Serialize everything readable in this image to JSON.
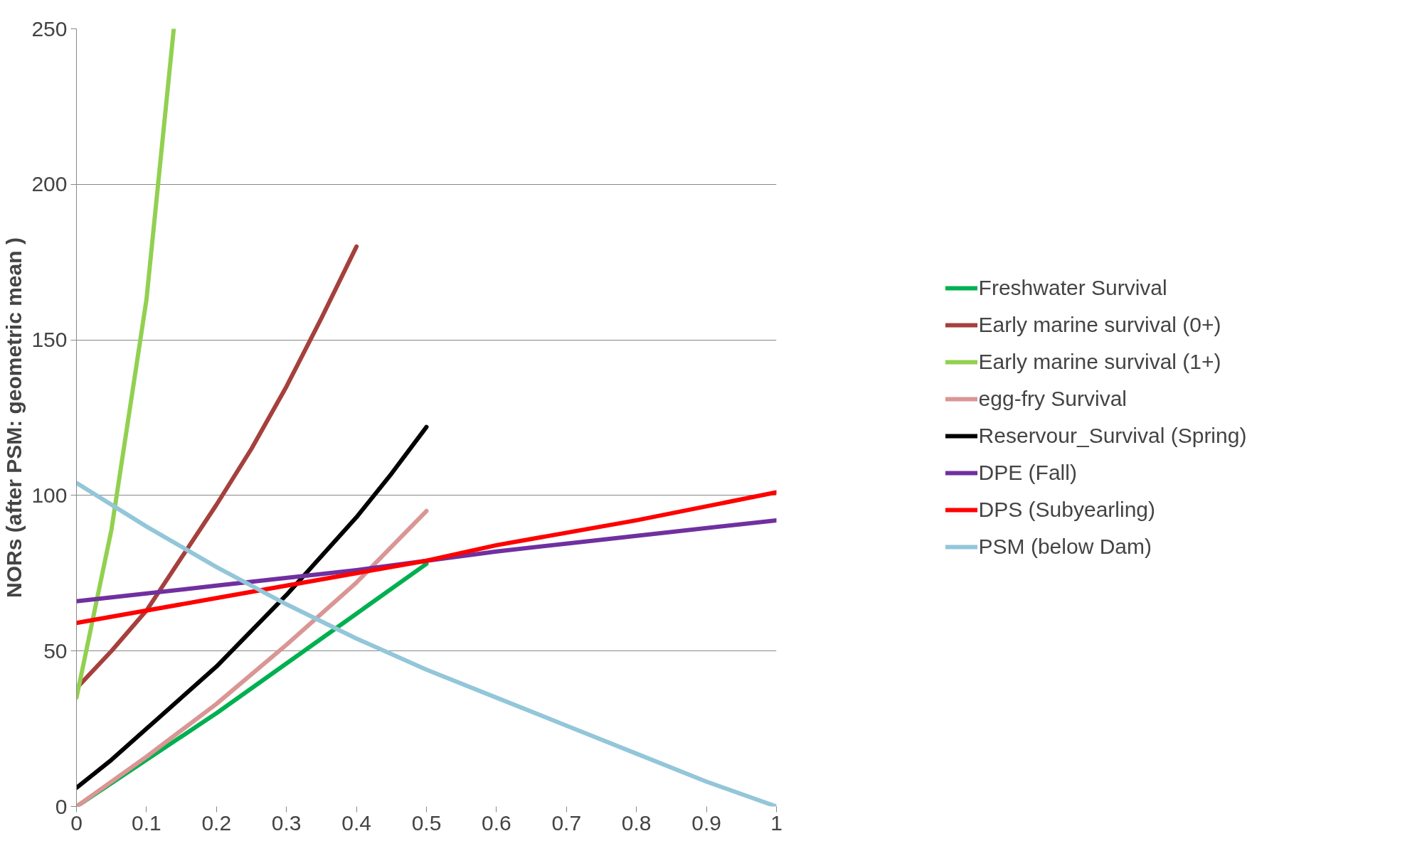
{
  "chart_data": {
    "type": "line",
    "ylabel": "NORs (after PSM: geometric mean )",
    "xlim": [
      0,
      1
    ],
    "ylim": [
      0,
      250
    ],
    "xticks": [
      0,
      0.1,
      0.2,
      0.3,
      0.4,
      0.5,
      0.6,
      0.7,
      0.8,
      0.9,
      1
    ],
    "yticks": [
      0,
      50,
      100,
      150,
      200,
      250
    ],
    "grid": "y",
    "legend": "right",
    "marker": "none",
    "line_style": "solid",
    "series": [
      {
        "name": "Freshwater Survival",
        "color": "#00b050",
        "x": [
          0,
          0.1,
          0.2,
          0.3,
          0.4,
          0.5
        ],
        "values": [
          0,
          15,
          30,
          46,
          62,
          78
        ]
      },
      {
        "name": "Early marine survival (0+)",
        "color": "#a5403d",
        "x": [
          0,
          0.05,
          0.1,
          0.15,
          0.2,
          0.25,
          0.3,
          0.35,
          0.4
        ],
        "values": [
          38,
          50,
          63,
          80,
          97,
          115,
          135,
          157,
          180
        ]
      },
      {
        "name": "Early marine survival (1+)",
        "color": "#92d050",
        "x": [
          0,
          0.05,
          0.1,
          0.139
        ],
        "values": [
          35,
          89,
          163,
          250
        ]
      },
      {
        "name": "egg-fry Survival",
        "color": "#d99694",
        "x": [
          0,
          0.1,
          0.2,
          0.3,
          0.4,
          0.5
        ],
        "values": [
          0,
          16,
          33,
          52,
          72,
          95
        ]
      },
      {
        "name": "Reservour_Survival (Spring)",
        "color": "#000000",
        "x": [
          0,
          0.05,
          0.1,
          0.2,
          0.3,
          0.4,
          0.45,
          0.5
        ],
        "values": [
          6,
          15,
          25,
          45,
          68,
          93,
          107,
          122
        ]
      },
      {
        "name": "DPE (Fall)",
        "color": "#7030a0",
        "x": [
          0,
          0.2,
          0.4,
          0.6,
          0.8,
          1
        ],
        "values": [
          66,
          71,
          76,
          82,
          87,
          92
        ]
      },
      {
        "name": "DPS (Subyearling)",
        "color": "#ff0000",
        "x": [
          0,
          0.2,
          0.4,
          0.5,
          0.6,
          0.8,
          1
        ],
        "values": [
          59,
          67,
          75,
          79,
          84,
          92,
          101
        ]
      },
      {
        "name": "PSM (below Dam)",
        "color": "#93c6d9",
        "x": [
          0,
          0.1,
          0.2,
          0.3,
          0.4,
          0.5,
          0.6,
          0.7,
          0.8,
          0.9,
          1
        ],
        "values": [
          104,
          90,
          77,
          65,
          54,
          44,
          35,
          26,
          17,
          8,
          0
        ]
      }
    ]
  }
}
